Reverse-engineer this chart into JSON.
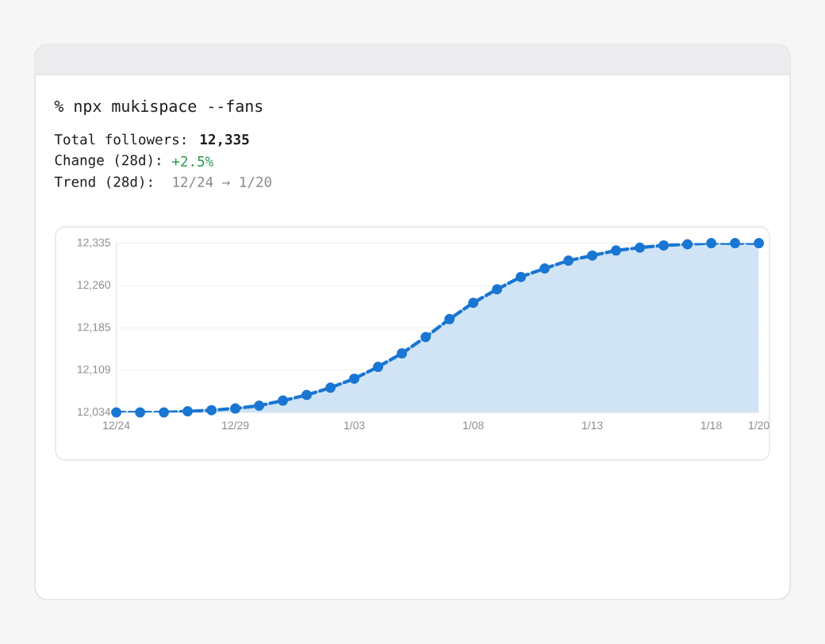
{
  "chart_data": {
    "type": "area",
    "annotations": [
      "% npx mukispace --fans",
      "Total followers: **12,335**",
      "Change (28d):",
      "+2.5%",
      "Trend (28d):",
      "12/24 → 1/20"
    ],
    "categories": [
      "12/24",
      null,
      null,
      null,
      null,
      "12/29",
      null,
      null,
      null,
      null,
      "1/03",
      null,
      null,
      null,
      null,
      "1/08",
      null,
      null,
      null,
      null,
      "1/13",
      null,
      null,
      null,
      null,
      "1/18",
      null,
      "1/20"
    ],
    "values": [
      12034,
      12034,
      12034,
      12036,
      12038,
      12041,
      12046,
      12055,
      12065,
      12078,
      12094,
      12115,
      12139,
      12168,
      12200,
      12229,
      12253,
      12275,
      12290,
      12304,
      12313,
      12322,
      12327,
      12331,
      12333,
      12335,
      12335,
      12335
    ],
    "color": "#1976d2",
    "ylim": [
      12034,
      12335
    ],
    "yticks": [
      {
        "value": 12034,
        "label": "12,034"
      },
      {
        "value": 12109.25,
        "label": "12,109"
      },
      {
        "value": 12184.5,
        "label": "12,185"
      },
      {
        "value": 12259.75,
        "label": "12,260"
      },
      {
        "value": 12335,
        "label": "12,335"
      }
    ],
    "grid": "y",
    "marker": "circle",
    "line_style": "dashed"
  }
}
